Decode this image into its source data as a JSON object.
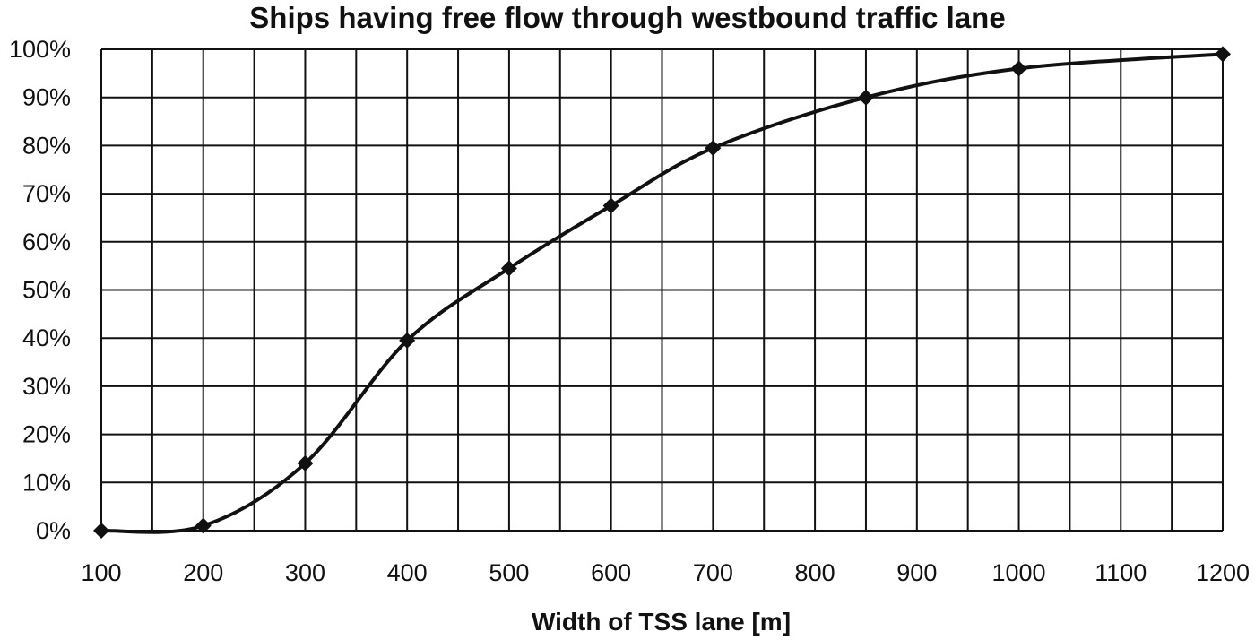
{
  "chart_data": {
    "type": "line",
    "title": "Ships having free flow through westbound traffic lane",
    "xlabel": "Width of TSS lane [m]",
    "ylabel": "",
    "xlim": [
      100,
      1200
    ],
    "ylim": [
      0,
      100
    ],
    "x_ticks": [
      100,
      200,
      300,
      400,
      500,
      600,
      700,
      800,
      900,
      1000,
      1100,
      1200
    ],
    "y_ticks": [
      "0%",
      "10%",
      "20%",
      "30%",
      "40%",
      "50%",
      "60%",
      "70%",
      "80%",
      "90%",
      "100%"
    ],
    "grid": true,
    "legend": "none",
    "marker": "diamond",
    "line_style": "smooth",
    "colors": {
      "line": "#111111",
      "grid": "#111111",
      "background": "#ffffff"
    },
    "series": [
      {
        "x": [
          100,
          200,
          300,
          400,
          500,
          600,
          700,
          850,
          1000,
          1200
        ],
        "y": [
          0,
          1,
          14,
          39.5,
          54.5,
          67.5,
          79.5,
          90,
          96,
          99
        ]
      }
    ]
  }
}
